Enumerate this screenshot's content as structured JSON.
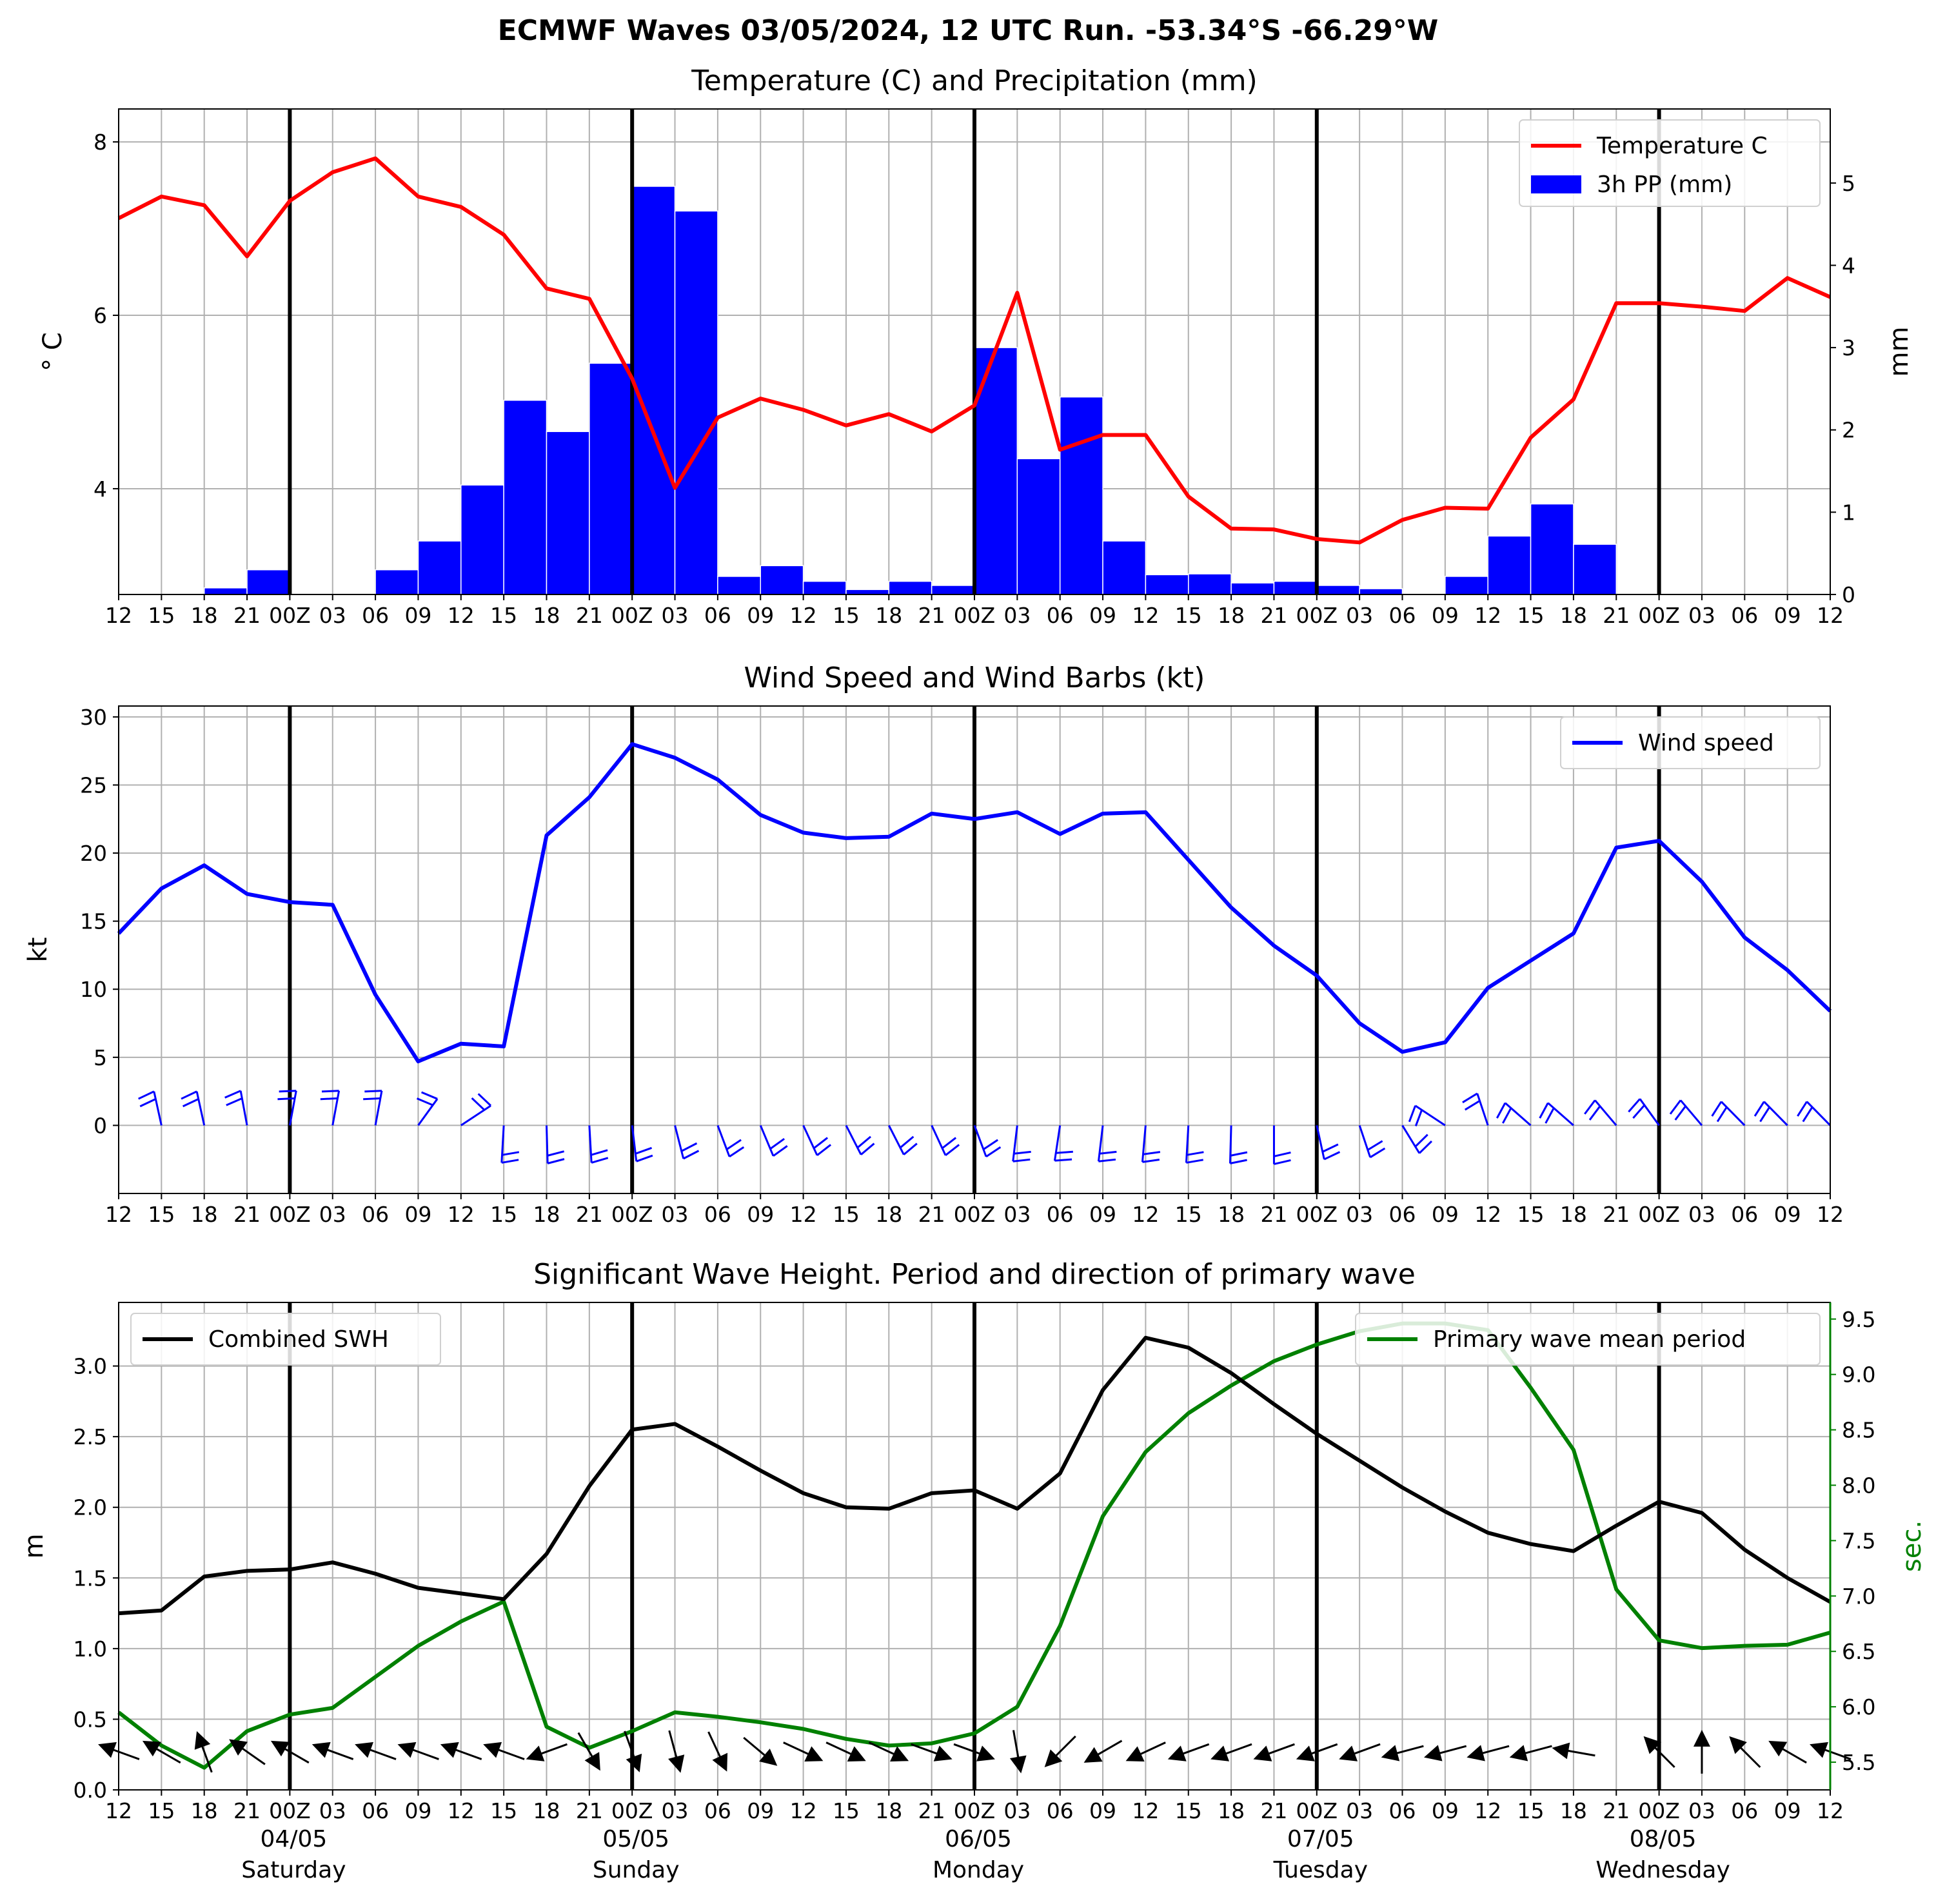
{
  "figure": {
    "suptitle": "ECMWF Waves 03/05/2024, 12 UTC Run. -53.34°S -66.29°W",
    "tick_labels": [
      "12",
      "15",
      "18",
      "21",
      "00Z",
      "03",
      "06",
      "09",
      "12",
      "15",
      "18",
      "21",
      "00Z",
      "03",
      "06",
      "09",
      "12",
      "15",
      "18",
      "21",
      "00Z",
      "03",
      "06",
      "09",
      "12",
      "15",
      "18",
      "21",
      "00Z",
      "03",
      "06",
      "09",
      "12",
      "15",
      "18",
      "21",
      "00Z",
      "03",
      "06",
      "09",
      "12"
    ],
    "bottom_tick_labels": [
      "12",
      "15",
      "18",
      "21",
      "00Z",
      "03",
      "06",
      "09",
      "12",
      "15",
      "18",
      "21",
      "00Z",
      "03",
      "06",
      "09",
      "12",
      "15",
      "18",
      "21",
      "00Z",
      "03",
      "06",
      "09",
      "12",
      "15",
      "18",
      "21",
      "00Z",
      "03",
      "06",
      "09",
      "12",
      "15",
      "18",
      "21",
      "00Z",
      "03",
      "06",
      "09",
      "12"
    ],
    "date_labels": [
      {
        "date": "04/05",
        "day": "Saturday",
        "index": 4
      },
      {
        "date": "05/05",
        "day": "Sunday",
        "index": 12
      },
      {
        "date": "06/05",
        "day": "Monday",
        "index": 20
      },
      {
        "date": "07/05",
        "day": "Tuesday",
        "index": 28
      },
      {
        "date": "08/05",
        "day": "Wednesday",
        "index": 36
      }
    ],
    "day_boundaries": [
      4,
      12,
      20,
      28,
      36
    ]
  },
  "chart_data": [
    {
      "type": "line+bar",
      "title": "Temperature (C) and Precipitation (mm)",
      "ylabel": "° C",
      "ylabel_right": "mm",
      "ylim": [
        2.78,
        8.38
      ],
      "yticks": [
        4,
        6,
        8
      ],
      "ylim_right": [
        0,
        5.9
      ],
      "yticks_right": [
        0,
        1,
        2,
        3,
        4,
        5
      ],
      "legend_position": "upper right",
      "series": [
        {
          "name": "Temperature C",
          "color": "#ff0000",
          "axis": "left",
          "values": [
            7.12,
            7.37,
            7.27,
            6.68,
            7.32,
            7.65,
            7.81,
            7.37,
            7.25,
            6.93,
            6.31,
            6.19,
            5.27,
            4.01,
            4.82,
            5.04,
            4.91,
            4.73,
            4.86,
            4.66,
            4.96,
            6.26,
            4.45,
            4.62,
            4.62,
            3.91,
            3.54,
            3.53,
            3.42,
            3.38,
            3.64,
            3.78,
            3.77,
            4.59,
            5.03,
            6.14,
            6.14,
            6.1,
            6.05,
            6.43,
            6.21
          ]
        },
        {
          "name": "3h PP (mm)",
          "color": "#0000ff",
          "axis": "right",
          "values": [
            0,
            0,
            0.08,
            0.3,
            0,
            0,
            0.3,
            0.65,
            1.33,
            2.36,
            1.98,
            2.81,
            4.96,
            4.66,
            0.22,
            0.35,
            0.16,
            0.06,
            0.16,
            0.11,
            3.0,
            1.65,
            2.4,
            0.65,
            0.24,
            0.25,
            0.14,
            0.16,
            0.11,
            0.07,
            0,
            0.22,
            0.71,
            1.1,
            0.61,
            0,
            0,
            0,
            0,
            0
          ]
        }
      ]
    },
    {
      "type": "line",
      "title": "Wind Speed and Wind Barbs (kt)",
      "ylabel": "kt",
      "ylim": [
        -5,
        30.8
      ],
      "yticks": [
        0,
        5,
        10,
        15,
        20,
        25,
        30
      ],
      "legend_position": "upper right",
      "series": [
        {
          "name": "Wind speed",
          "color": "#0000ff",
          "values": [
            14.1,
            17.4,
            19.1,
            17.0,
            16.4,
            16.2,
            9.6,
            4.7,
            6.0,
            5.8,
            21.3,
            24.1,
            28.0,
            27.0,
            25.4,
            22.8,
            21.5,
            21.1,
            21.2,
            22.9,
            22.5,
            23.0,
            21.4,
            22.9,
            23.0,
            19.5,
            16.0,
            13.2,
            11.0,
            7.5,
            5.4,
            6.1,
            10.1,
            12.1,
            14.1,
            20.4,
            20.9,
            17.9,
            13.8,
            11.4,
            8.4
          ]
        }
      ],
      "barbs": [
        {
          "i": 1,
          "side": "up",
          "tilt": -0.35
        },
        {
          "i": 2,
          "side": "up",
          "tilt": -0.35
        },
        {
          "i": 3,
          "side": "up",
          "tilt": -0.3
        },
        {
          "i": 4,
          "side": "up",
          "tilt": 0.3
        },
        {
          "i": 5,
          "side": "up",
          "tilt": 0.3
        },
        {
          "i": 6,
          "side": "up",
          "tilt": 0.3
        },
        {
          "i": 7,
          "side": "up",
          "tilt": 0.9
        },
        {
          "i": 8,
          "side": "up",
          "tilt": 1.4
        },
        {
          "i": 9,
          "side": "down",
          "tilt": -0.1
        },
        {
          "i": 10,
          "side": "down",
          "tilt": 0.05
        },
        {
          "i": 11,
          "side": "down",
          "tilt": 0.1
        },
        {
          "i": 12,
          "side": "down",
          "tilt": 0.2
        },
        {
          "i": 13,
          "side": "down",
          "tilt": 0.4
        },
        {
          "i": 14,
          "side": "down",
          "tilt": 0.55
        },
        {
          "i": 15,
          "side": "down",
          "tilt": 0.6
        },
        {
          "i": 16,
          "side": "down",
          "tilt": 0.65
        },
        {
          "i": 17,
          "side": "down",
          "tilt": 0.7
        },
        {
          "i": 18,
          "side": "down",
          "tilt": 0.7
        },
        {
          "i": 19,
          "side": "down",
          "tilt": 0.65
        },
        {
          "i": 20,
          "side": "down",
          "tilt": 0.55
        },
        {
          "i": 21,
          "side": "down",
          "tilt": -0.2
        },
        {
          "i": 22,
          "side": "down",
          "tilt": -0.25
        },
        {
          "i": 23,
          "side": "down",
          "tilt": -0.2
        },
        {
          "i": 24,
          "side": "down",
          "tilt": -0.15
        },
        {
          "i": 25,
          "side": "down",
          "tilt": -0.1
        },
        {
          "i": 26,
          "side": "down",
          "tilt": -0.05
        },
        {
          "i": 27,
          "side": "down",
          "tilt": 0
        },
        {
          "i": 28,
          "side": "down",
          "tilt": 0.35
        },
        {
          "i": 29,
          "side": "down",
          "tilt": 0.5
        },
        {
          "i": 30,
          "side": "down",
          "tilt": 0.8
        },
        {
          "i": 31,
          "side": "up",
          "tilt": -1.4
        },
        {
          "i": 32,
          "side": "up",
          "tilt": -0.5
        },
        {
          "i": 33,
          "side": "up",
          "tilt": -1.2
        },
        {
          "i": 34,
          "side": "up",
          "tilt": -1.2
        },
        {
          "i": 35,
          "side": "up",
          "tilt": -1.0
        },
        {
          "i": 36,
          "side": "up",
          "tilt": -0.9
        },
        {
          "i": 37,
          "side": "up",
          "tilt": -1.0
        },
        {
          "i": 38,
          "side": "up",
          "tilt": -1.1
        },
        {
          "i": 39,
          "side": "up",
          "tilt": -1.1
        },
        {
          "i": 40,
          "side": "up",
          "tilt": -1.1
        }
      ]
    },
    {
      "type": "line",
      "title": "Significant Wave Height. Period and direction of primary wave",
      "ylabel": "m",
      "ylabel_right": "sec.",
      "ylim": [
        0,
        3.45
      ],
      "yticks": [
        0.0,
        0.5,
        1.0,
        1.5,
        2.0,
        2.5,
        3.0
      ],
      "ylim_right": [
        5.25,
        9.65
      ],
      "yticks_right": [
        5.5,
        6.0,
        6.5,
        7.0,
        7.5,
        8.0,
        8.5,
        9.0,
        9.5
      ],
      "series": [
        {
          "name": "Combined SWH",
          "color": "#000000",
          "axis": "left",
          "legend_position": "upper left",
          "values": [
            1.25,
            1.27,
            1.51,
            1.55,
            1.56,
            1.61,
            1.53,
            1.43,
            1.39,
            1.35,
            1.67,
            2.15,
            2.55,
            2.59,
            2.43,
            2.26,
            2.1,
            2.0,
            1.99,
            2.1,
            2.12,
            1.99,
            2.24,
            2.83,
            3.2,
            3.13,
            2.95,
            2.73,
            2.52,
            2.33,
            2.14,
            1.97,
            1.82,
            1.74,
            1.69,
            1.87,
            2.04,
            1.96,
            1.7,
            1.5,
            1.33
          ]
        },
        {
          "name": "Primary wave mean period",
          "color": "#008000",
          "axis": "right",
          "legend_position": "upper right",
          "values": [
            5.95,
            5.65,
            5.45,
            5.78,
            5.93,
            5.99,
            6.27,
            6.55,
            6.77,
            6.95,
            5.82,
            5.63,
            5.78,
            5.95,
            5.91,
            5.86,
            5.8,
            5.71,
            5.65,
            5.67,
            5.76,
            6.0,
            6.73,
            7.72,
            8.3,
            8.65,
            8.9,
            9.12,
            9.27,
            9.39,
            9.46,
            9.46,
            9.4,
            8.88,
            8.32,
            7.06,
            6.6,
            6.53,
            6.55,
            6.56,
            6.67
          ]
        }
      ],
      "wave_arrows": [
        {
          "i": 0,
          "deg": 200
        },
        {
          "i": 1,
          "deg": 210
        },
        {
          "i": 2,
          "deg": 250
        },
        {
          "i": 3,
          "deg": 215
        },
        {
          "i": 4,
          "deg": 210
        },
        {
          "i": 5,
          "deg": 200
        },
        {
          "i": 6,
          "deg": 200
        },
        {
          "i": 7,
          "deg": 200
        },
        {
          "i": 8,
          "deg": 200
        },
        {
          "i": 9,
          "deg": 200
        },
        {
          "i": 10,
          "deg": 160
        },
        {
          "i": 11,
          "deg": 60
        },
        {
          "i": 12,
          "deg": 70
        },
        {
          "i": 13,
          "deg": 75
        },
        {
          "i": 14,
          "deg": 65
        },
        {
          "i": 15,
          "deg": 40
        },
        {
          "i": 16,
          "deg": 25
        },
        {
          "i": 17,
          "deg": 25
        },
        {
          "i": 18,
          "deg": 25
        },
        {
          "i": 19,
          "deg": 20
        },
        {
          "i": 20,
          "deg": 20
        },
        {
          "i": 21,
          "deg": 80
        },
        {
          "i": 22,
          "deg": 135
        },
        {
          "i": 23,
          "deg": 150
        },
        {
          "i": 24,
          "deg": 155
        },
        {
          "i": 25,
          "deg": 160
        },
        {
          "i": 26,
          "deg": 160
        },
        {
          "i": 27,
          "deg": 160
        },
        {
          "i": 28,
          "deg": 160
        },
        {
          "i": 29,
          "deg": 160
        },
        {
          "i": 30,
          "deg": 165
        },
        {
          "i": 31,
          "deg": 165
        },
        {
          "i": 32,
          "deg": 165
        },
        {
          "i": 33,
          "deg": 165
        },
        {
          "i": 34,
          "deg": 190
        },
        {
          "i": 36,
          "deg": 225
        },
        {
          "i": 37,
          "deg": 270
        },
        {
          "i": 38,
          "deg": 225
        },
        {
          "i": 39,
          "deg": 210
        },
        {
          "i": 40,
          "deg": 200
        }
      ]
    }
  ]
}
